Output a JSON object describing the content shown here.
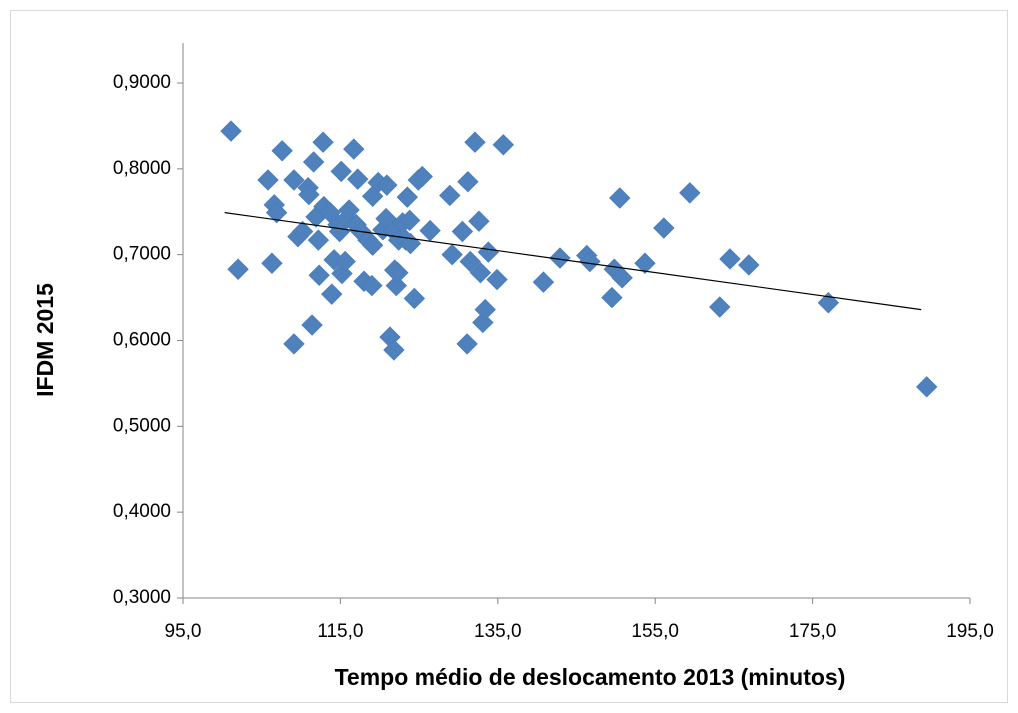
{
  "chart_data": {
    "type": "scatter",
    "xlabel": "Tempo médio de deslocamento 2013 (minutos)",
    "ylabel": "IFDM 2015",
    "xlim": [
      95,
      195
    ],
    "ylim": [
      0.3,
      0.9
    ],
    "xticks": [
      {
        "value": 95,
        "label": "95,0"
      },
      {
        "value": 115,
        "label": "115,0"
      },
      {
        "value": 135,
        "label": "135,0"
      },
      {
        "value": 155,
        "label": "155,0"
      },
      {
        "value": 175,
        "label": "175,0"
      },
      {
        "value": 195,
        "label": "195,0"
      }
    ],
    "yticks": [
      {
        "value": 0.3,
        "label": "0,3000"
      },
      {
        "value": 0.4,
        "label": "0,4000"
      },
      {
        "value": 0.5,
        "label": "0,5000"
      },
      {
        "value": 0.6,
        "label": "0,6000"
      },
      {
        "value": 0.7,
        "label": "0,7000"
      },
      {
        "value": 0.8,
        "label": "0,8000"
      },
      {
        "value": 0.9,
        "label": "0,9000"
      }
    ],
    "x": [
      101.1,
      102.0,
      105.8,
      106.3,
      106.6,
      106.9,
      107.6,
      109.1,
      109.1,
      109.6,
      110.2,
      110.9,
      111.0,
      111.4,
      111.6,
      111.9,
      112.2,
      112.3,
      112.8,
      112.9,
      113.7,
      113.9,
      114.2,
      114.7,
      114.9,
      115.1,
      115.2,
      115.6,
      115.8,
      116.1,
      116.7,
      117.0,
      117.2,
      117.6,
      118.0,
      118.5,
      119.0,
      119.1,
      119.1,
      119.8,
      120.4,
      120.8,
      120.9,
      121.3,
      121.7,
      121.8,
      121.9,
      122.1,
      122.3,
      122.4,
      122.9,
      123.3,
      123.5,
      123.8,
      123.9,
      124.4,
      124.9,
      125.4,
      126.4,
      128.9,
      129.2,
      130.5,
      131.1,
      131.2,
      131.5,
      132.1,
      132.6,
      132.8,
      133.1,
      133.4,
      133.8,
      134.9,
      135.7,
      140.8,
      142.9,
      146.3,
      146.7,
      149.5,
      149.8,
      150.5,
      150.8,
      153.7,
      156.1,
      159.4,
      163.2,
      164.5,
      166.9,
      177.0,
      189.5
    ],
    "series": [
      {
        "color": "#4f81bd",
        "values": [
          0.844,
          0.683,
          0.787,
          0.69,
          0.758,
          0.749,
          0.821,
          0.596,
          0.787,
          0.721,
          0.727,
          0.778,
          0.77,
          0.618,
          0.808,
          0.744,
          0.717,
          0.676,
          0.831,
          0.756,
          0.749,
          0.654,
          0.694,
          0.735,
          0.727,
          0.797,
          0.678,
          0.692,
          0.742,
          0.752,
          0.823,
          0.735,
          0.788,
          0.727,
          0.669,
          0.717,
          0.664,
          0.768,
          0.711,
          0.784,
          0.729,
          0.742,
          0.781,
          0.604,
          0.728,
          0.589,
          0.682,
          0.664,
          0.679,
          0.717,
          0.737,
          0.717,
          0.767,
          0.74,
          0.713,
          0.649,
          0.787,
          0.791,
          0.728,
          0.769,
          0.7,
          0.727,
          0.596,
          0.785,
          0.692,
          0.831,
          0.739,
          0.679,
          0.621,
          0.636,
          0.703,
          0.671,
          0.828,
          0.668,
          0.696,
          0.699,
          0.692,
          0.65,
          0.683,
          0.766,
          0.673,
          0.69,
          0.731,
          0.772,
          0.639,
          0.695,
          0.688,
          0.644,
          0.546
        ]
      }
    ],
    "trendline": {
      "color": "#000000",
      "x": [
        100.3,
        188.8
      ],
      "y": [
        0.749,
        0.636
      ]
    }
  }
}
